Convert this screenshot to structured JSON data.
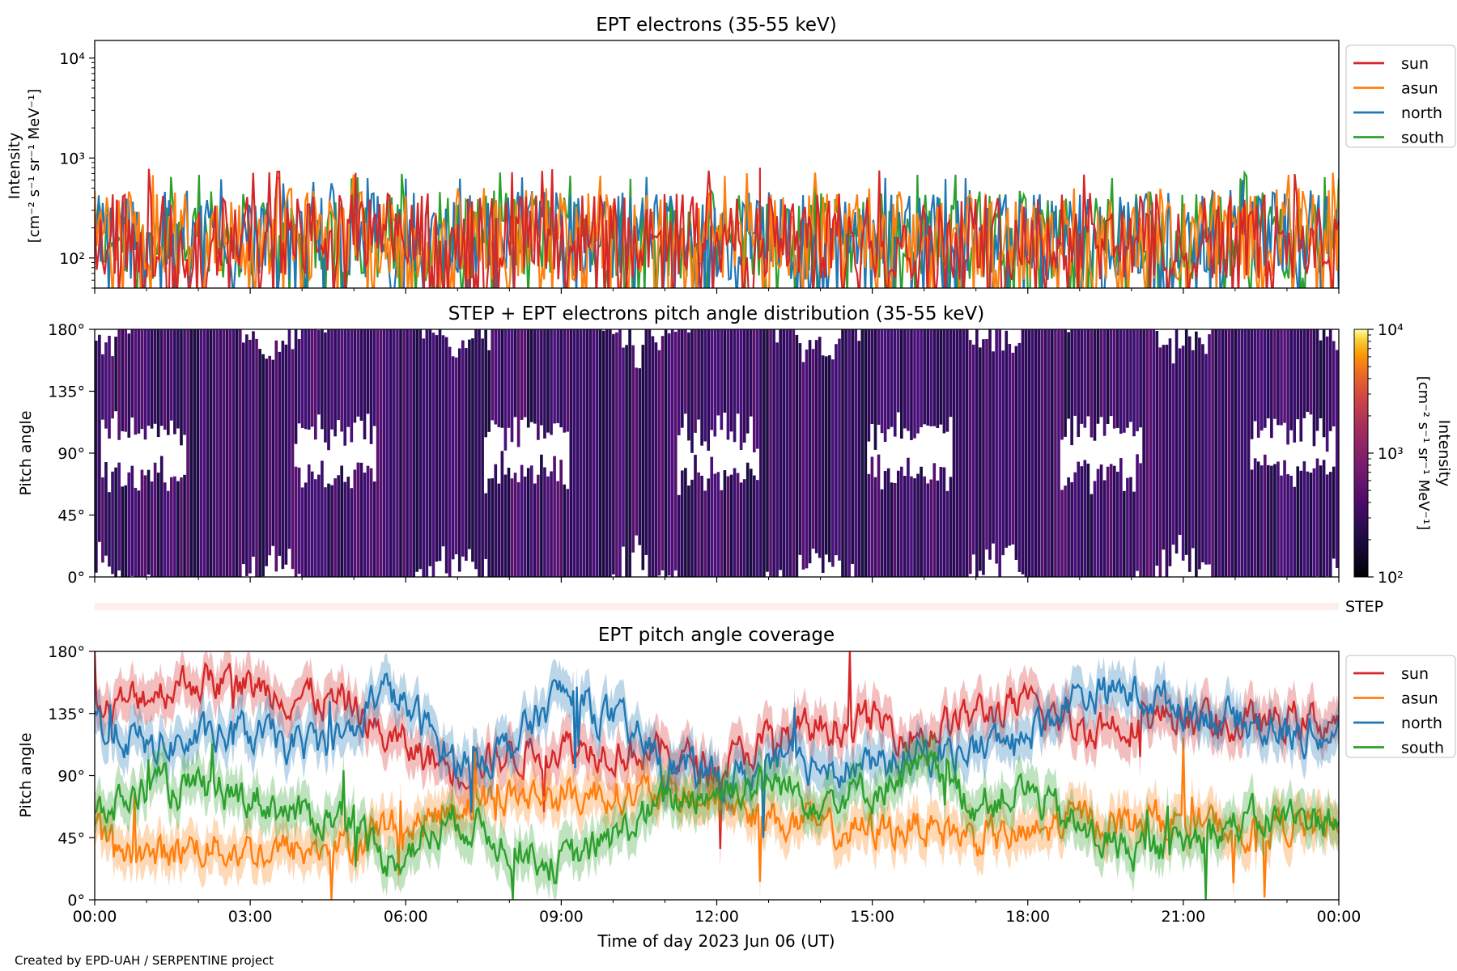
{
  "footer": "Created by EPD-UAH / SERPENTINE project",
  "colors": {
    "sun": "#d62728",
    "asun": "#ff7f0e",
    "north": "#1f77b4",
    "south": "#2ca02c"
  },
  "chart_data": [
    {
      "type": "line",
      "title": "EPT electrons (35-55 keV)",
      "ylabel_line1": "Intensity",
      "ylabel_line2": "[cm⁻² s⁻¹ sr⁻¹ MeV⁻¹]",
      "yscale": "log",
      "ylim": [
        50,
        15000
      ],
      "yticks": [
        {
          "value": 100,
          "label": "10²"
        },
        {
          "value": 1000,
          "label": "10³"
        },
        {
          "value": 10000,
          "label": "10⁴"
        }
      ],
      "xlim": [
        "2023-06-06T00:00",
        "2023-06-07T00:00"
      ],
      "legend": "outside-right",
      "note": "Noisy data, 1-minute resolution, values fluctuate between about 50 and 700 with occasional peaks to ~800.",
      "series": [
        {
          "name": "sun",
          "color": "#d62728",
          "typical_range": [
            60,
            450
          ],
          "max": 800,
          "max_time": "12:50"
        },
        {
          "name": "asun",
          "color": "#ff7f0e",
          "typical_range": [
            60,
            500
          ],
          "max": 720
        },
        {
          "name": "north",
          "color": "#1f77b4",
          "typical_range": [
            60,
            480
          ],
          "max": 650
        },
        {
          "name": "south",
          "color": "#2ca02c",
          "typical_range": [
            60,
            480
          ],
          "max": 720
        }
      ]
    },
    {
      "type": "heatmap",
      "title": "STEP + EPT electrons pitch angle distribution (35-55 keV)",
      "ylabel": "Pitch angle",
      "ylim": [
        0,
        180
      ],
      "yticks": [
        "0°",
        "45°",
        "90°",
        "135°",
        "180°"
      ],
      "colorbar": {
        "label_line1": "Intensity",
        "label_line2": "[cm⁻² s⁻¹ sr⁻¹ MeV⁻¹]",
        "scale": "log",
        "range": [
          100,
          10000
        ],
        "ticks": [
          "10²",
          "10³",
          "10⁴"
        ],
        "colormap": "inferno"
      },
      "note": "Mostly dark purple (~200 intensity) cells across all pitch angles with gaps."
    },
    {
      "type": "line",
      "title": "EPT pitch angle coverage",
      "ylabel": "Pitch angle",
      "xlabel": "Time of day 2023 Jun 06 (UT)",
      "ylim": [
        0,
        180
      ],
      "yticks": [
        "0°",
        "45°",
        "90°",
        "135°",
        "180°"
      ],
      "xticks": [
        "00:00",
        "03:00",
        "06:00",
        "09:00",
        "12:00",
        "15:00",
        "18:00",
        "21:00",
        "00:00"
      ],
      "step_label": "STEP",
      "legend": "outside-right",
      "band_halfwidth_deg": 15,
      "x_hours": [
        0,
        1,
        2,
        3,
        4,
        5,
        5.5,
        6,
        7,
        8,
        9,
        10,
        11,
        12,
        13,
        14,
        15,
        16,
        17,
        18,
        19,
        20,
        21,
        22,
        23,
        24
      ],
      "series": [
        {
          "name": "sun",
          "color": "#d62728",
          "values": [
            130,
            150,
            160,
            155,
            148,
            140,
            120,
            110,
            95,
            105,
            112,
            110,
            105,
            95,
            115,
            125,
            130,
            120,
            135,
            140,
            125,
            130,
            135,
            125,
            130,
            130
          ]
        },
        {
          "name": "asun",
          "color": "#ff7f0e",
          "values": [
            45,
            30,
            40,
            35,
            35,
            40,
            55,
            50,
            70,
            75,
            75,
            78,
            75,
            72,
            60,
            50,
            50,
            55,
            45,
            45,
            60,
            55,
            60,
            50,
            55,
            50
          ]
        },
        {
          "name": "north",
          "color": "#1f77b4",
          "values": [
            130,
            110,
            115,
            120,
            110,
            120,
            155,
            140,
            100,
            110,
            150,
            130,
            100,
            85,
            95,
            100,
            95,
            105,
            110,
            120,
            150,
            150,
            140,
            130,
            120,
            120
          ]
        },
        {
          "name": "south",
          "color": "#2ca02c",
          "values": [
            60,
            80,
            80,
            75,
            60,
            60,
            30,
            35,
            60,
            40,
            25,
            45,
            70,
            80,
            85,
            75,
            80,
            95,
            70,
            80,
            50,
            35,
            40,
            55,
            60,
            60
          ]
        }
      ]
    }
  ]
}
